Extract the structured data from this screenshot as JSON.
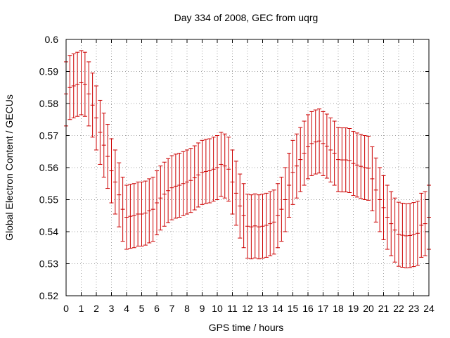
{
  "chart_data": {
    "type": "line",
    "title": "Day 334 of 2008, GEC from uqrg",
    "xlabel": "GPS time / hours",
    "ylabel": "Global Electron Content / GECUs",
    "xlim": [
      0,
      24
    ],
    "ylim": [
      0.52,
      0.6
    ],
    "xticks": [
      "0",
      "1",
      "2",
      "3",
      "4",
      "5",
      "6",
      "7",
      "8",
      "9",
      "10",
      "11",
      "12",
      "13",
      "14",
      "15",
      "16",
      "17",
      "18",
      "19",
      "20",
      "21",
      "22",
      "23",
      "24"
    ],
    "yticks": [
      "0.52",
      "0.53",
      "0.54",
      "0.55",
      "0.56",
      "0.57",
      "0.58",
      "0.59",
      "0.6"
    ],
    "grid": true,
    "series_color": "#cc0000",
    "series": [
      {
        "x": [
          0,
          0.25,
          0.5,
          0.75,
          1,
          1.25,
          1.5,
          1.75,
          2,
          2.25,
          2.5,
          2.75,
          3,
          3.25,
          3.5,
          3.75,
          4,
          4.25,
          4.5,
          4.75,
          5,
          5.25,
          5.5,
          5.75,
          6,
          6.25,
          6.5,
          6.75,
          7,
          7.25,
          7.5,
          7.75,
          8,
          8.25,
          8.5,
          8.75,
          9,
          9.25,
          9.5,
          9.75,
          10,
          10.25,
          10.5,
          10.75,
          11,
          11.25,
          11.5,
          11.75,
          12,
          12.25,
          12.5,
          12.75,
          13,
          13.25,
          13.5,
          13.75,
          14,
          14.25,
          14.5,
          14.75,
          15,
          15.25,
          15.5,
          15.75,
          16,
          16.25,
          16.5,
          16.75,
          17,
          17.25,
          17.5,
          17.75,
          18,
          18.25,
          18.5,
          18.75,
          19,
          19.25,
          19.5,
          19.75,
          20,
          20.25,
          20.5,
          20.75,
          21,
          21.25,
          21.5,
          21.75,
          22,
          22.25,
          22.5,
          22.75,
          23,
          23.25,
          23.5,
          23.75,
          24
        ],
        "y": [
          0.583,
          0.585,
          0.5855,
          0.586,
          0.5865,
          0.586,
          0.583,
          0.5795,
          0.5755,
          0.571,
          0.567,
          0.5635,
          0.559,
          0.5555,
          0.5515,
          0.547,
          0.5445,
          0.5448,
          0.545,
          0.5455,
          0.5455,
          0.5458,
          0.5465,
          0.547,
          0.549,
          0.5505,
          0.5517,
          0.5528,
          0.5537,
          0.5542,
          0.5545,
          0.555,
          0.5555,
          0.556,
          0.5568,
          0.5577,
          0.5585,
          0.5588,
          0.559,
          0.5595,
          0.56,
          0.561,
          0.5605,
          0.5595,
          0.5555,
          0.552,
          0.548,
          0.545,
          0.5417,
          0.5415,
          0.5418,
          0.5415,
          0.5417,
          0.542,
          0.5425,
          0.543,
          0.545,
          0.547,
          0.55,
          0.5545,
          0.5585,
          0.5605,
          0.5625,
          0.5645,
          0.5665,
          0.5675,
          0.568,
          0.5683,
          0.5675,
          0.5667,
          0.5655,
          0.5645,
          0.5625,
          0.5624,
          0.5624,
          0.5622,
          0.5613,
          0.5608,
          0.5604,
          0.56,
          0.5598,
          0.5565,
          0.553,
          0.55,
          0.5475,
          0.5445,
          0.5425,
          0.5405,
          0.5392,
          0.5389,
          0.5387,
          0.5388,
          0.5391,
          0.5395,
          0.542,
          0.5425,
          0.5445
        ],
        "error": 0.01
      }
    ]
  }
}
